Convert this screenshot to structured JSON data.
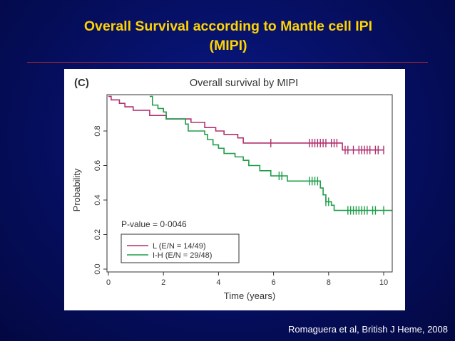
{
  "slide": {
    "title_line1": "Overall Survival according to Mantle cell IPI",
    "title_line2": "(MIPI)",
    "citation": "Romaguera et al, British J Heme, 2008"
  },
  "chart_data": {
    "type": "line",
    "panel_label": "(C)",
    "title": "Overall survival by MIPI",
    "xlabel": "Time (years)",
    "ylabel": "Probability",
    "xlim": [
      0,
      10
    ],
    "ylim": [
      0,
      1
    ],
    "x_ticks": [
      "0",
      "2",
      "4",
      "6",
      "8",
      "10"
    ],
    "y_ticks": [
      "0.0",
      "0.2",
      "0.4",
      "0.6",
      "0.8"
    ],
    "annotation": "P-value = 0·0046",
    "legend": "bottom-left",
    "series": [
      {
        "name": "L (E/N = 14/49)",
        "color": "#b0306e",
        "steps": [
          [
            0,
            1.0
          ],
          [
            0.1,
            0.98
          ],
          [
            0.4,
            0.96
          ],
          [
            0.6,
            0.94
          ],
          [
            0.9,
            0.92
          ],
          [
            1.5,
            0.89
          ],
          [
            2.0,
            0.89
          ],
          [
            2.1,
            0.87
          ],
          [
            3.0,
            0.85
          ],
          [
            3.5,
            0.82
          ],
          [
            3.9,
            0.8
          ],
          [
            4.2,
            0.78
          ],
          [
            4.7,
            0.76
          ],
          [
            4.9,
            0.73
          ],
          [
            8.4,
            0.73
          ],
          [
            8.5,
            0.69
          ],
          [
            10.0,
            0.69
          ]
        ],
        "censored": [
          5.9,
          7.3,
          7.4,
          7.5,
          7.6,
          7.7,
          7.8,
          7.9,
          8.1,
          8.2,
          8.3,
          8.6,
          8.7,
          8.9,
          9.1,
          9.2,
          9.3,
          9.4,
          9.5,
          9.7,
          9.8,
          10.0
        ]
      },
      {
        "name": "I-H (E/N = 29/48)",
        "color": "#1f9e4a",
        "steps": [
          [
            1.5,
            1.0
          ],
          [
            1.6,
            0.95
          ],
          [
            1.8,
            0.93
          ],
          [
            2.0,
            0.91
          ],
          [
            2.1,
            0.87
          ],
          [
            2.7,
            0.87
          ],
          [
            2.8,
            0.84
          ],
          [
            2.9,
            0.8
          ],
          [
            3.5,
            0.78
          ],
          [
            3.6,
            0.75
          ],
          [
            3.8,
            0.72
          ],
          [
            4.0,
            0.7
          ],
          [
            4.2,
            0.67
          ],
          [
            4.6,
            0.65
          ],
          [
            4.9,
            0.63
          ],
          [
            5.1,
            0.6
          ],
          [
            5.5,
            0.57
          ],
          [
            5.9,
            0.54
          ],
          [
            6.4,
            0.54
          ],
          [
            6.5,
            0.51
          ],
          [
            7.6,
            0.51
          ],
          [
            7.7,
            0.47
          ],
          [
            7.8,
            0.43
          ],
          [
            7.9,
            0.39
          ],
          [
            8.1,
            0.37
          ],
          [
            8.2,
            0.34
          ],
          [
            10.3,
            0.34
          ]
        ],
        "censored": [
          6.2,
          6.3,
          7.3,
          7.4,
          7.5,
          7.6,
          7.9,
          8.0,
          8.7,
          8.8,
          8.9,
          9.0,
          9.1,
          9.2,
          9.3,
          9.4,
          9.6,
          9.7,
          10.0
        ]
      }
    ]
  }
}
